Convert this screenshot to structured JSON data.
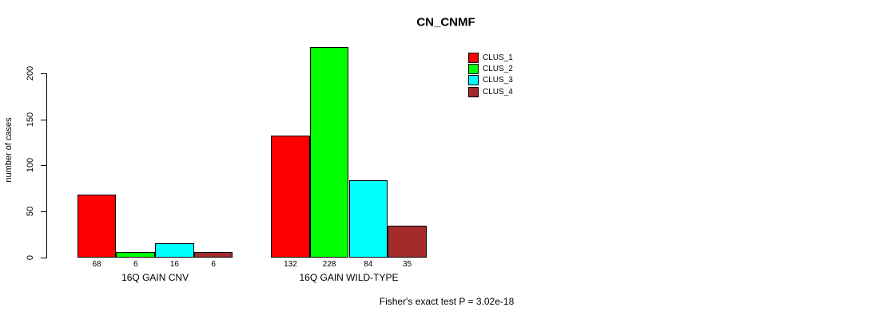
{
  "chart_data": {
    "type": "bar",
    "title": "CN_CNMF",
    "ylabel": "number of cases",
    "xlabel": "",
    "yticks": [
      0,
      50,
      100,
      150,
      200
    ],
    "ylim": [
      0,
      230
    ],
    "grid": false,
    "legend_position": "top-right",
    "bar_value_labels": true,
    "categories": [
      "16Q GAIN CNV",
      "16Q GAIN WILD-TYPE"
    ],
    "series": [
      {
        "name": "CLUS_1",
        "color": "#FF0000",
        "values": [
          68,
          132
        ]
      },
      {
        "name": "CLUS_2",
        "color": "#00FF00",
        "values": [
          6,
          228
        ]
      },
      {
        "name": "CLUS_3",
        "color": "#00FFFF",
        "values": [
          16,
          84
        ]
      },
      {
        "name": "CLUS_4",
        "color": "#A52A2A",
        "values": [
          6,
          35
        ]
      }
    ],
    "annotation": "Fisher's exact test P = 3.02e-18"
  }
}
